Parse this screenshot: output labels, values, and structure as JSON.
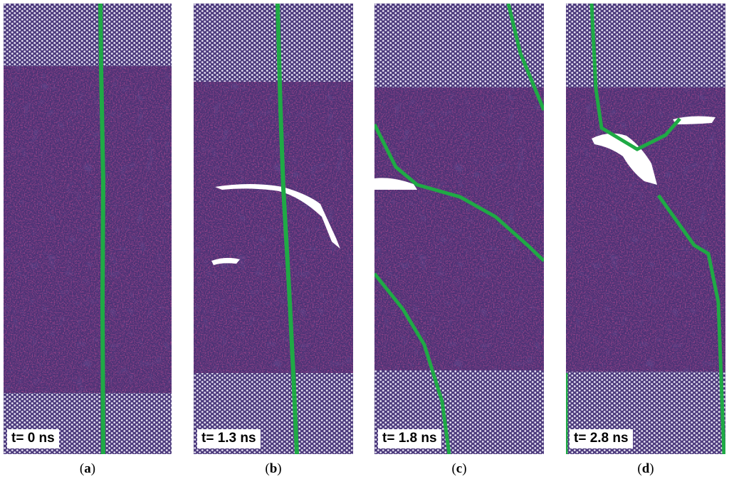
{
  "panels": [
    {
      "id": "a",
      "time_label": "t= 0 ns"
    },
    {
      "id": "b",
      "time_label": "t= 1.3 ns"
    },
    {
      "id": "c",
      "time_label": "t= 1.8 ns"
    },
    {
      "id": "d",
      "time_label": "t= 2.8 ns"
    }
  ],
  "colors": {
    "crystal": "#c7bedf",
    "amorphous": "#4a3275",
    "grain_boundary": "#1faa45",
    "void": "#ffffff"
  }
}
